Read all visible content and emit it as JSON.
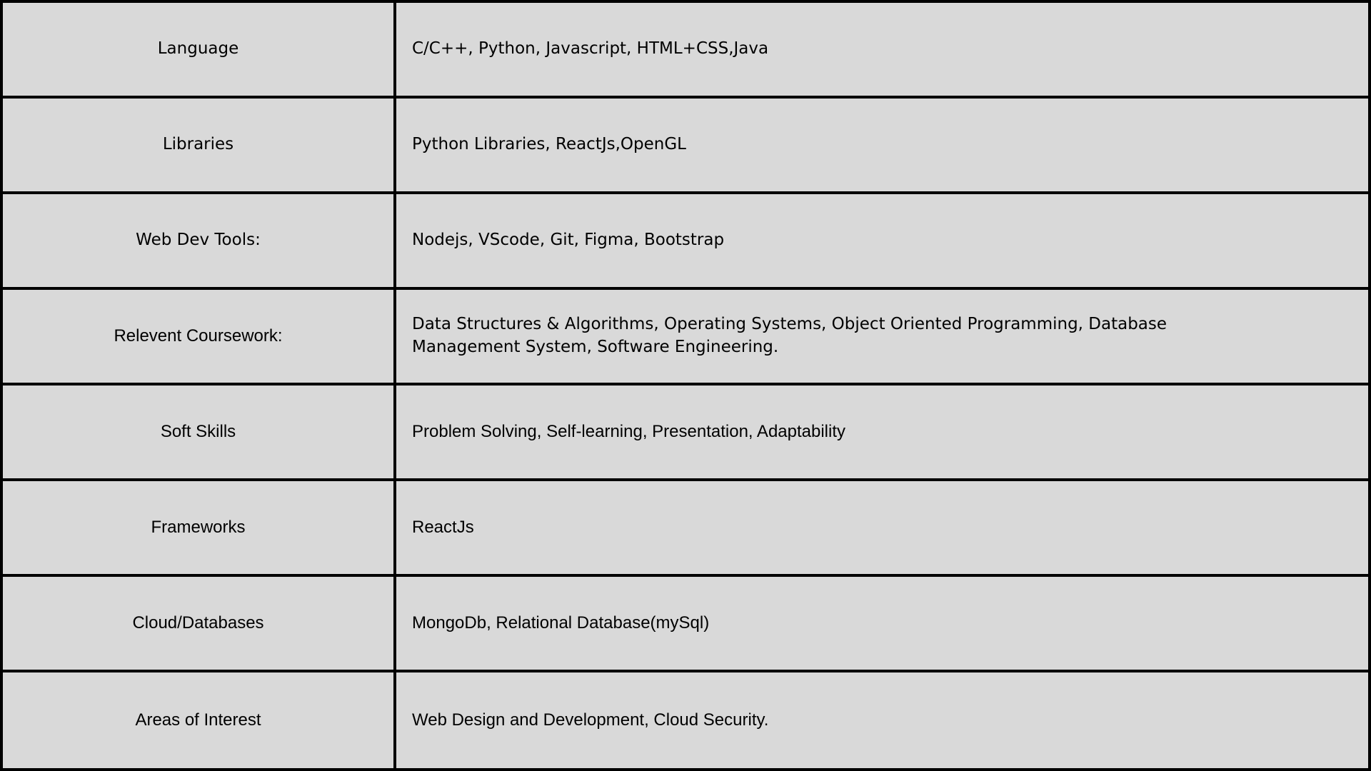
{
  "skills_table": {
    "rows": [
      {
        "label": "Language",
        "value": "C/C++, Python, Javascript, HTML+CSS,Java"
      },
      {
        "label": "Libraries",
        "value": "Python Libraries, ReactJs,OpenGL"
      },
      {
        "label": "Web Dev Tools:",
        "value": "Nodejs, VScode, Git, Figma, Bootstrap"
      },
      {
        "label": "Relevent Coursework:",
        "value": "Data Structures & Algorithms, Operating Systems, Object Oriented Programming, Database Management System, Software Engineering."
      },
      {
        "label": "Soft Skills",
        "value": "Problem Solving, Self-learning, Presentation, Adaptability"
      },
      {
        "label": "Frameworks",
        "value": "ReactJs"
      },
      {
        "label": "Cloud/Databases",
        "value": "MongoDb, Relational Database(mySql)"
      },
      {
        "label": "Areas of Interest",
        "value": "Web Design and Development, Cloud Security."
      }
    ]
  },
  "colors": {
    "background": "#d9d9d9",
    "border": "#000000",
    "text": "#000000"
  }
}
